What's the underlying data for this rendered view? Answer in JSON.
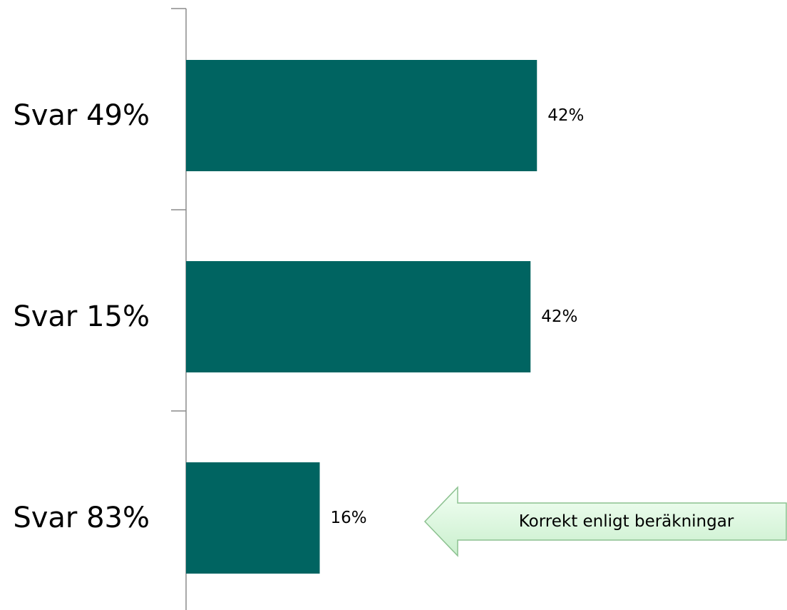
{
  "chart_data": {
    "type": "bar",
    "orientation": "horizontal",
    "categories": [
      "Svar 49%",
      "Svar 15%",
      "Svar 83%"
    ],
    "values": [
      42,
      42,
      16
    ],
    "value_labels": [
      "42%",
      "42%",
      "16%"
    ],
    "xlim": [
      0,
      50
    ],
    "grid": false,
    "bar_color": "#006461",
    "annotation": {
      "text": "Korrekt enligt beräkningar",
      "target_category": "Svar 83%",
      "fill_color": "#d9f5dc",
      "border_color": "#8cc190"
    }
  }
}
